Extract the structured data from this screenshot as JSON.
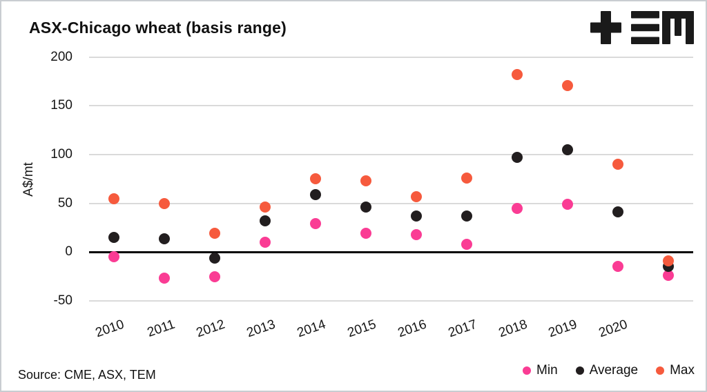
{
  "header": {
    "logo_name": "tem-logo"
  },
  "footer": {
    "source": "Source: CME, ASX, TEM"
  },
  "colors": {
    "min": "#FA3C94",
    "average": "#221E1F",
    "max": "#F65A3D",
    "gridline": "#dadada",
    "zero_line": "#000000",
    "logo": "#1a1a1a"
  },
  "chart_data": {
    "type": "scatter",
    "title": "ASX-Chicago wheat (basis range)",
    "xlabel": "",
    "ylabel": "A$/mt",
    "ylim": [
      -50,
      200
    ],
    "yticks": [
      200,
      150,
      100,
      50,
      0,
      -50
    ],
    "grid": true,
    "zero_baseline": true,
    "x_labels_rotated": true,
    "legend_position": "bottom-right",
    "categories": [
      "2010",
      "2011",
      "2012",
      "2013",
      "2014",
      "2015",
      "2016",
      "2017",
      "2018",
      "2019",
      "2020",
      ""
    ],
    "series": [
      {
        "name": "Min",
        "color": "#FA3C94",
        "values": [
          -5,
          -27,
          -25,
          10,
          29,
          19,
          18,
          8,
          45,
          49,
          -15,
          -24
        ]
      },
      {
        "name": "Average",
        "color": "#221E1F",
        "values": [
          15,
          14,
          -6,
          32,
          59,
          46,
          37,
          37,
          97,
          105,
          41,
          -15
        ]
      },
      {
        "name": "Max",
        "color": "#F65A3D",
        "values": [
          55,
          50,
          19,
          46,
          75,
          73,
          57,
          76,
          182,
          171,
          90,
          -9
        ]
      }
    ]
  }
}
